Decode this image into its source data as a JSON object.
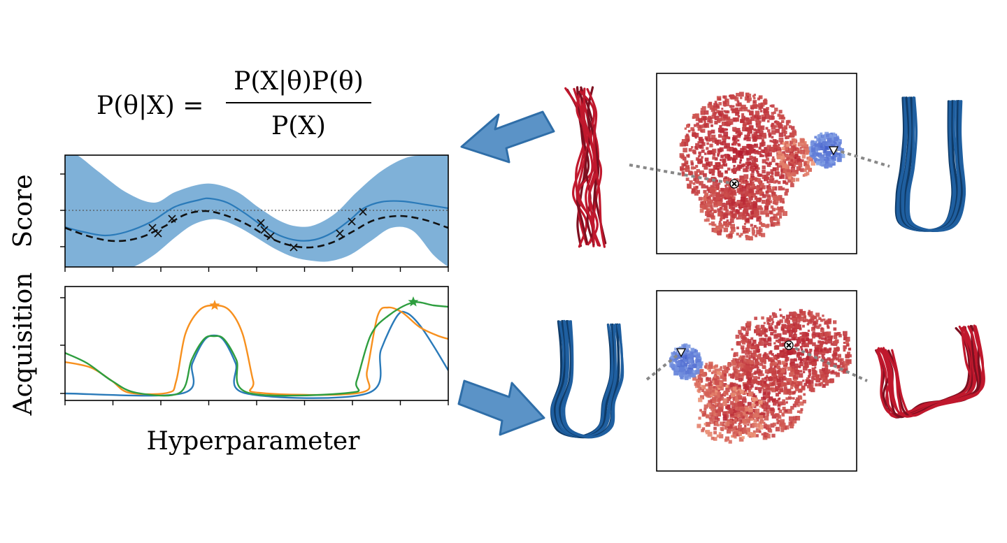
{
  "equation": {
    "lhs": "P(θ|X) =",
    "numerator": "P(X|θ)P(θ)",
    "denominator": "P(X)"
  },
  "score_plot": {
    "ylabel": "Score",
    "colors": {
      "band": "#7fb1d8",
      "mean": "#2a7ab9",
      "truth": "#111111",
      "threshold": "#555555"
    }
  },
  "acquisition_plot": {
    "ylabel": "Acquisition",
    "xlabel": "Hyperparameter",
    "colors": {
      "blue": "#2a7ab9",
      "orange": "#f7901e",
      "green": "#2e9e3f"
    }
  },
  "projection_colors": {
    "red": "#c0182d",
    "blue": "#1f5fa0",
    "arrow": "#5b93c7"
  }
}
